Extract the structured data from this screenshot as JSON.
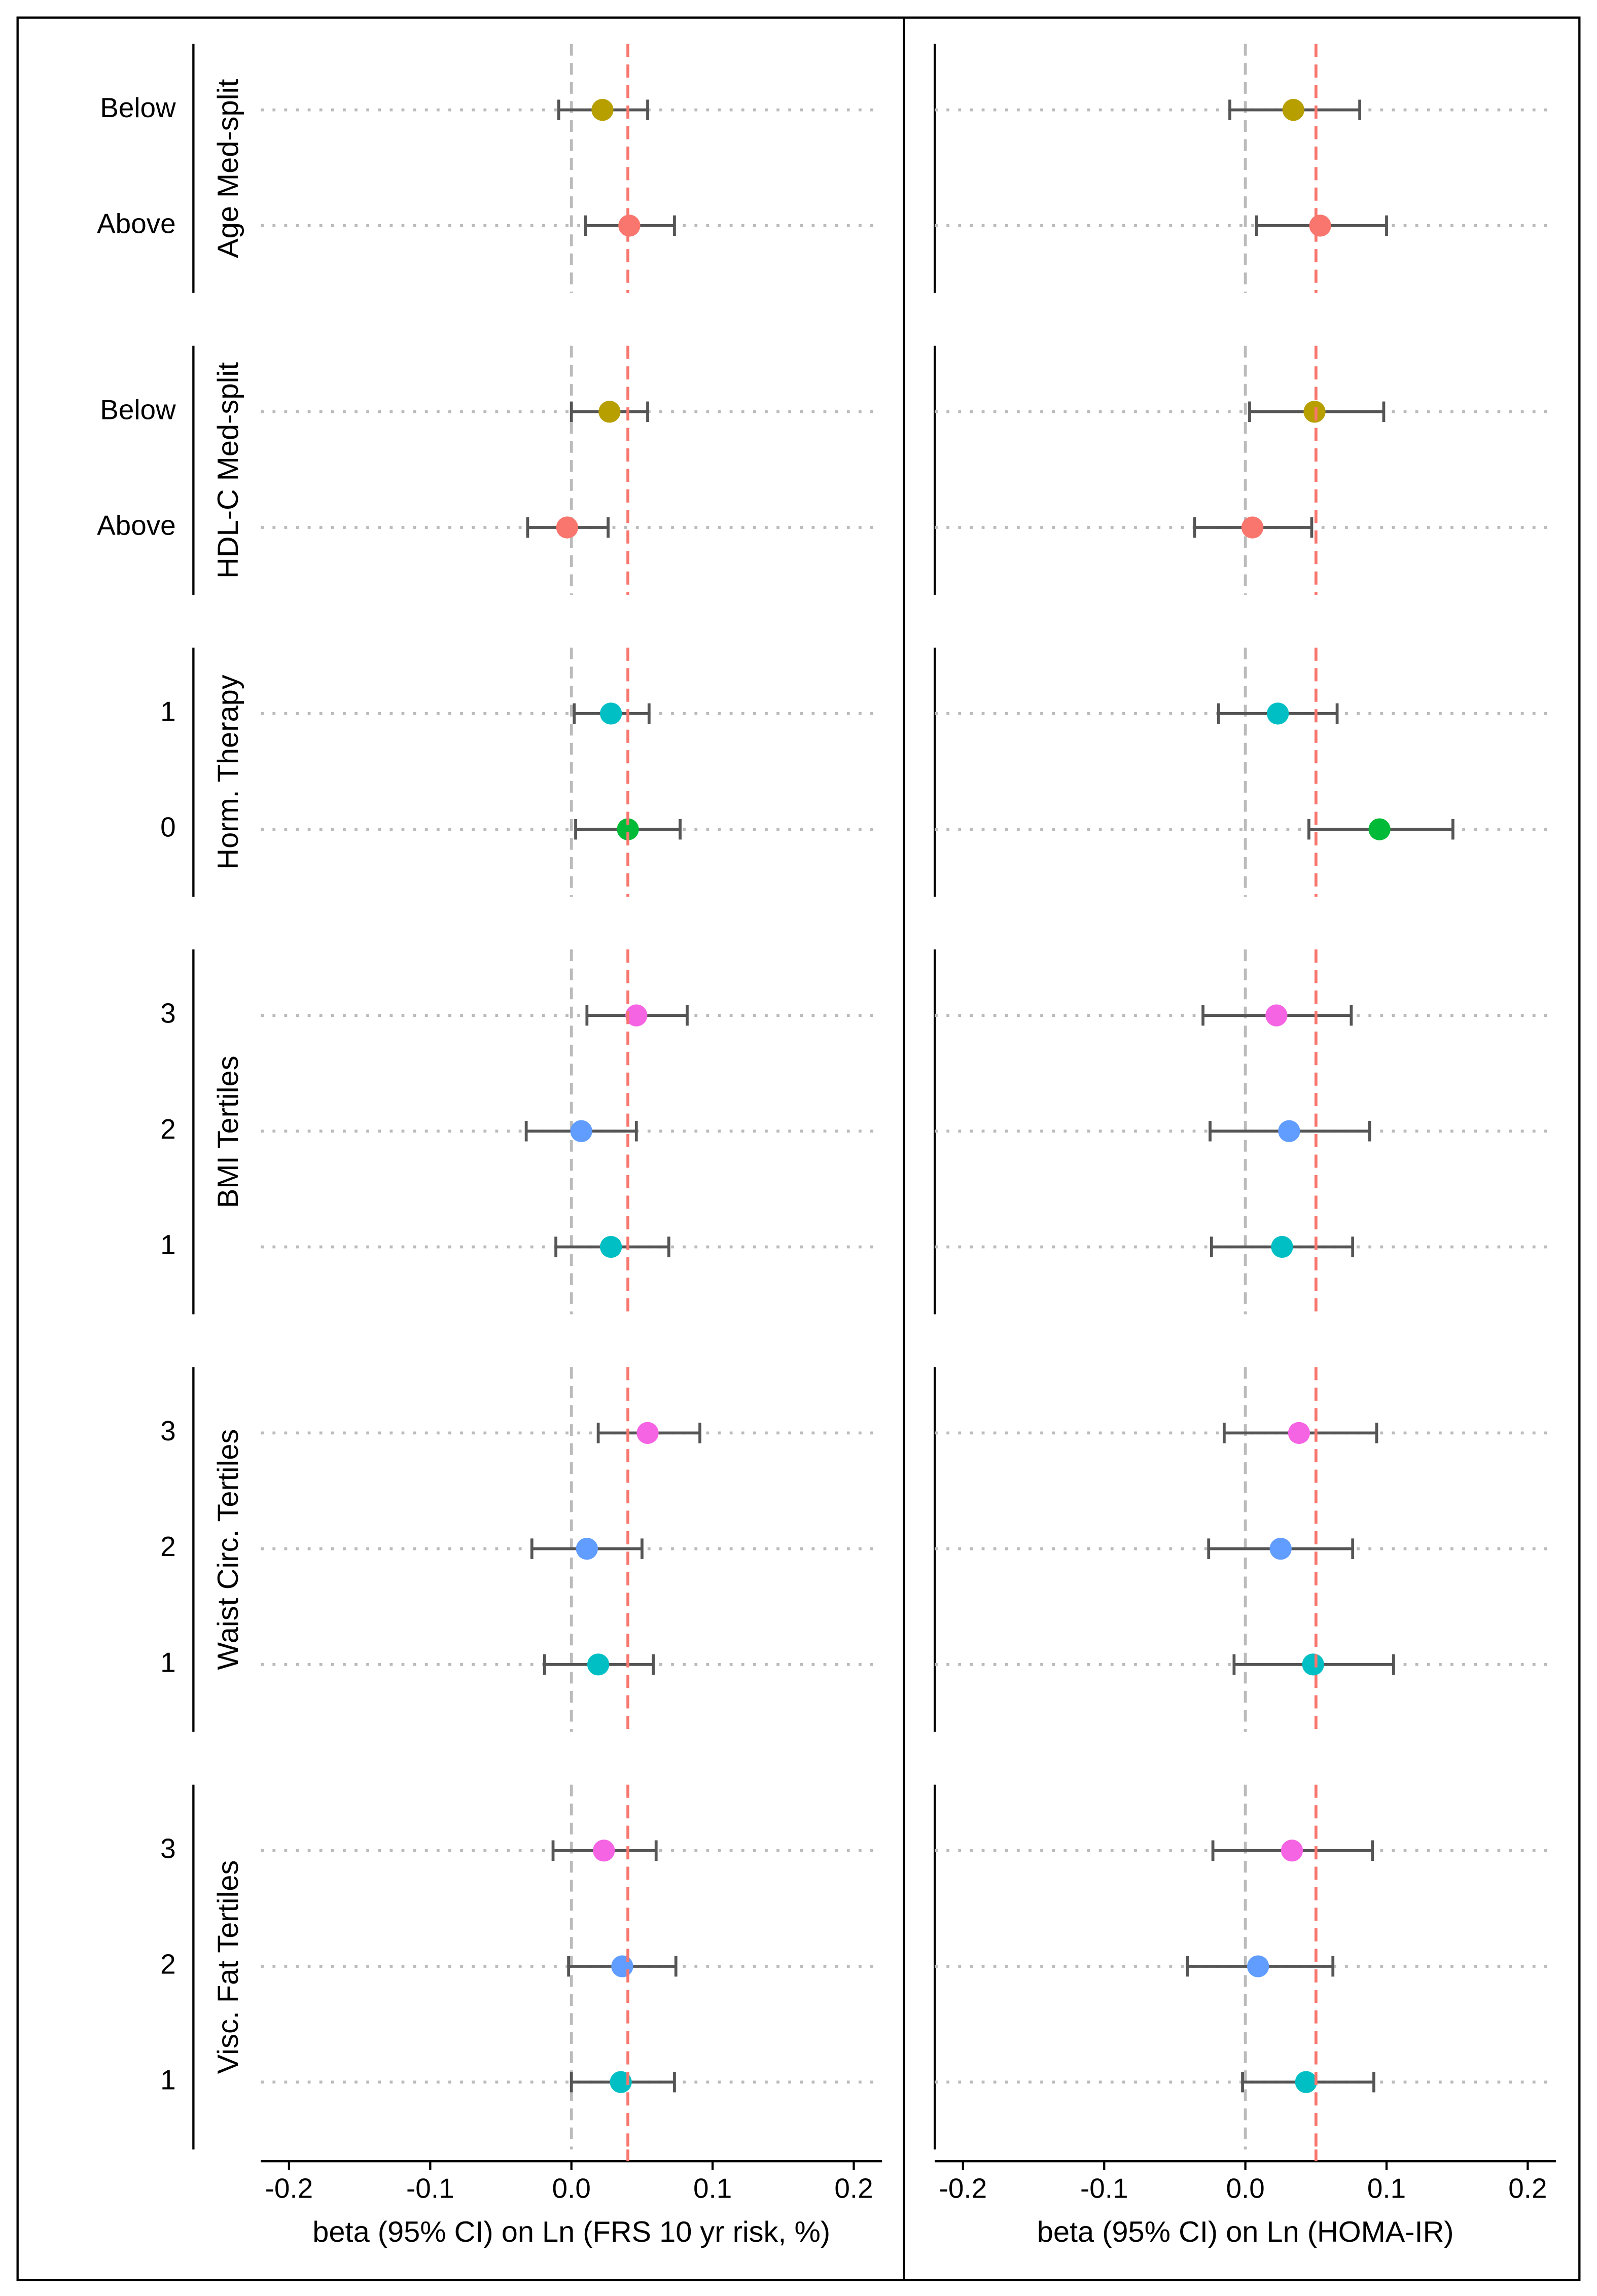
{
  "chart_data": {
    "type": "forest",
    "groups": [
      {
        "name": "Age Med-split",
        "categories": [
          "Below",
          "Above"
        ],
        "colors": [
          "#b79f00",
          "#f8766d"
        ]
      },
      {
        "name": "HDL-C Med-split",
        "categories": [
          "Below",
          "Above"
        ],
        "colors": [
          "#b79f00",
          "#f8766d"
        ]
      },
      {
        "name": "Horm. Therapy",
        "categories": [
          "1",
          "0"
        ],
        "colors": [
          "#00bfc4",
          "#00ba38"
        ]
      },
      {
        "name": "BMI Tertiles",
        "categories": [
          "3",
          "2",
          "1"
        ],
        "colors": [
          "#f564e3",
          "#619cff",
          "#00bfc4"
        ]
      },
      {
        "name": "Waist Circ. Tertiles",
        "categories": [
          "3",
          "2",
          "1"
        ],
        "colors": [
          "#f564e3",
          "#619cff",
          "#00bfc4"
        ]
      },
      {
        "name": "Visc. Fat Tertiles",
        "categories": [
          "3",
          "2",
          "1"
        ],
        "colors": [
          "#f564e3",
          "#619cff",
          "#00bfc4"
        ]
      }
    ],
    "panels": [
      {
        "xlabel": "beta (95% CI) on Ln (FRS 10 yr risk, %)",
        "xlim": [
          -0.22,
          0.22
        ],
        "xticks": [
          -0.2,
          -0.1,
          {
            "value": 0,
            "label": "0.0"
          },
          0.1,
          0.2
        ],
        "null_line": 0,
        "ref_line": 0.04,
        "ref_color": "#f8766d",
        "series": [
          {
            "values": [
              0.022,
              0.041
            ],
            "lower": [
              -0.009,
              0.01
            ],
            "upper": [
              0.054,
              0.073
            ]
          },
          {
            "values": [
              0.027,
              -0.003
            ],
            "lower": [
              0.0,
              -0.031
            ],
            "upper": [
              0.054,
              0.026
            ]
          },
          {
            "values": [
              0.028,
              0.04
            ],
            "lower": [
              0.002,
              0.003
            ],
            "upper": [
              0.055,
              0.077
            ]
          },
          {
            "values": [
              0.046,
              0.007,
              0.028
            ],
            "lower": [
              0.011,
              -0.032,
              -0.011
            ],
            "upper": [
              0.082,
              0.046,
              0.069
            ]
          },
          {
            "values": [
              0.054,
              0.011,
              0.019
            ],
            "lower": [
              0.019,
              -0.028,
              -0.019
            ],
            "upper": [
              0.091,
              0.05,
              0.058
            ]
          },
          {
            "values": [
              0.023,
              0.036,
              0.035
            ],
            "lower": [
              -0.013,
              -0.002,
              0.0
            ],
            "upper": [
              0.06,
              0.074,
              0.073
            ]
          }
        ]
      },
      {
        "xlabel": "beta (95% CI) on Ln (HOMA-IR)",
        "xlim": [
          -0.22,
          0.22
        ],
        "xticks": [
          -0.2,
          -0.1,
          {
            "value": 0,
            "label": "0.0"
          },
          0.1,
          0.2
        ],
        "null_line": 0,
        "ref_line": 0.05,
        "ref_color": "#f8766d",
        "series": [
          {
            "values": [
              0.034,
              0.053
            ],
            "lower": [
              -0.011,
              0.008
            ],
            "upper": [
              0.081,
              0.1
            ]
          },
          {
            "values": [
              0.049,
              0.005
            ],
            "lower": [
              0.003,
              -0.036
            ],
            "upper": [
              0.098,
              0.047
            ]
          },
          {
            "values": [
              0.023,
              0.095
            ],
            "lower": [
              -0.019,
              0.045
            ],
            "upper": [
              0.065,
              0.147
            ]
          },
          {
            "values": [
              0.022,
              0.031,
              0.026
            ],
            "lower": [
              -0.03,
              -0.025,
              -0.024
            ],
            "upper": [
              0.075,
              0.088,
              0.076
            ]
          },
          {
            "values": [
              0.038,
              0.025,
              0.048
            ],
            "lower": [
              -0.015,
              -0.026,
              -0.008
            ],
            "upper": [
              0.093,
              0.076,
              0.105
            ]
          },
          {
            "values": [
              0.033,
              0.009,
              0.043
            ],
            "lower": [
              -0.023,
              -0.041,
              -0.002
            ],
            "upper": [
              0.09,
              0.062,
              0.091
            ]
          }
        ]
      }
    ]
  }
}
